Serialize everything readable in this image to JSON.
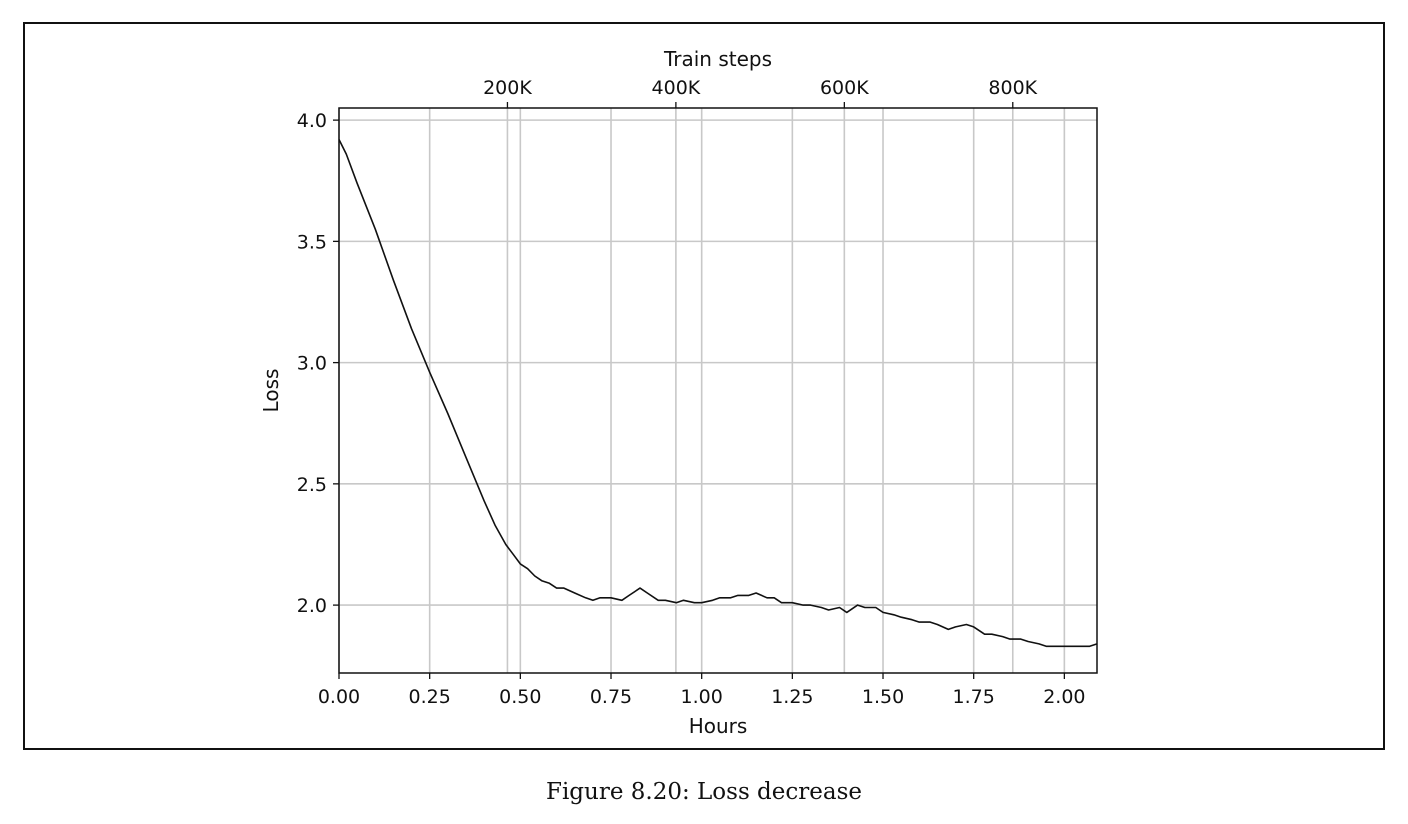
{
  "caption": "Figure 8.20: Loss decrease",
  "chart_data": {
    "type": "line",
    "title": "",
    "xlabel": "Hours",
    "ylabel": "Loss",
    "top_xlabel": "Train steps",
    "xlim": [
      0,
      2.09
    ],
    "ylim": [
      1.72,
      4.05
    ],
    "top_xlim": [
      0,
      900000
    ],
    "x_ticks": [
      0.0,
      0.25,
      0.5,
      0.75,
      1.0,
      1.25,
      1.5,
      1.75,
      2.0
    ],
    "x_tick_labels": [
      "0.00",
      "0.25",
      "0.50",
      "0.75",
      "1.00",
      "1.25",
      "1.50",
      "1.75",
      "2.00"
    ],
    "y_ticks": [
      2.0,
      2.5,
      3.0,
      3.5,
      4.0
    ],
    "y_tick_labels": [
      "2.0",
      "2.5",
      "3.0",
      "3.5",
      "4.0"
    ],
    "top_x_ticks": [
      200000,
      400000,
      600000,
      800000
    ],
    "top_x_tick_labels": [
      "200K",
      "400K",
      "600K",
      "800K"
    ],
    "grid": true,
    "line_color": "#111111",
    "grid_color": "#c8c8c8",
    "series": [
      {
        "x": [
          0.0,
          0.02,
          0.05,
          0.1,
          0.15,
          0.2,
          0.25,
          0.3,
          0.35,
          0.4,
          0.43,
          0.46,
          0.48,
          0.5,
          0.52,
          0.54,
          0.56,
          0.58,
          0.6,
          0.62,
          0.65,
          0.68,
          0.7,
          0.72,
          0.75,
          0.78,
          0.8,
          0.83,
          0.85,
          0.88,
          0.9,
          0.93,
          0.95,
          0.98,
          1.0,
          1.03,
          1.05,
          1.08,
          1.1,
          1.13,
          1.15,
          1.18,
          1.2,
          1.22,
          1.25,
          1.28,
          1.3,
          1.33,
          1.35,
          1.38,
          1.4,
          1.43,
          1.45,
          1.48,
          1.5,
          1.53,
          1.55,
          1.58,
          1.6,
          1.63,
          1.65,
          1.68,
          1.7,
          1.73,
          1.75,
          1.78,
          1.8,
          1.83,
          1.85,
          1.88,
          1.9,
          1.93,
          1.95,
          1.98,
          2.0,
          2.03,
          2.05,
          2.07,
          2.09
        ],
        "y": [
          3.92,
          3.86,
          3.74,
          3.55,
          3.34,
          3.14,
          2.96,
          2.79,
          2.61,
          2.43,
          2.33,
          2.25,
          2.21,
          2.17,
          2.15,
          2.12,
          2.1,
          2.09,
          2.07,
          2.07,
          2.05,
          2.03,
          2.02,
          2.03,
          2.03,
          2.02,
          2.04,
          2.07,
          2.05,
          2.02,
          2.02,
          2.01,
          2.02,
          2.01,
          2.01,
          2.02,
          2.03,
          2.03,
          2.04,
          2.04,
          2.05,
          2.03,
          2.03,
          2.01,
          2.01,
          2.0,
          2.0,
          1.99,
          1.98,
          1.99,
          1.97,
          2.0,
          1.99,
          1.99,
          1.97,
          1.96,
          1.95,
          1.94,
          1.93,
          1.93,
          1.92,
          1.9,
          1.91,
          1.92,
          1.91,
          1.88,
          1.88,
          1.87,
          1.86,
          1.86,
          1.85,
          1.84,
          1.83,
          1.83,
          1.83,
          1.83,
          1.83,
          1.83,
          1.84
        ]
      }
    ]
  }
}
